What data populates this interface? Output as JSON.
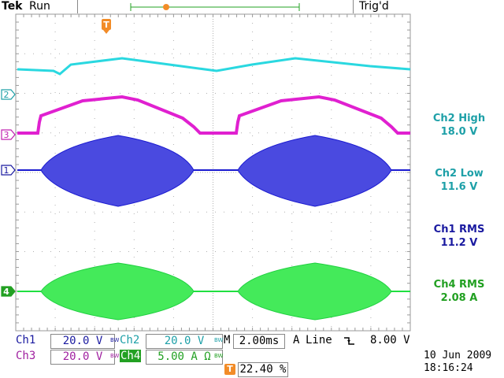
{
  "header": {
    "brand": "Tek",
    "status": "Run",
    "trigger_state": "Trig'd"
  },
  "markers": {
    "trigger_pos": "T",
    "ch2": "2",
    "ch3": "3",
    "ch1": "1",
    "ch4": "4"
  },
  "measurements": [
    {
      "label": "Ch2 High",
      "value": "18.0 V",
      "color": "#1ea0a8"
    },
    {
      "label": "Ch2 Low",
      "value": "11.6 V",
      "color": "#1ea0a8"
    },
    {
      "label": "Ch1 RMS",
      "value": "11.2 V",
      "color": "#1a1aa0"
    },
    {
      "label": "Ch4 RMS",
      "value": "2.08 A",
      "color": "#22a022"
    }
  ],
  "channels": {
    "ch1": {
      "name": "Ch1",
      "scale": "20.0 V",
      "bw": "BW"
    },
    "ch2": {
      "name": "Ch2",
      "scale": "20.0 V",
      "bw": "BW"
    },
    "ch3": {
      "name": "Ch3",
      "scale": "20.0 V",
      "bw": "BW"
    },
    "ch4": {
      "name": "Ch4",
      "scale": "5.00 A",
      "unit_sym": "Ω",
      "bw": "BW"
    }
  },
  "timebase": {
    "label": "M",
    "value": "2.00ms"
  },
  "trigger": {
    "source_ch": "A",
    "source": "Line",
    "slope_icon": "falling-edge",
    "level": "8.00 V"
  },
  "trigger_position": {
    "marker": "T",
    "value": "22.40 %"
  },
  "datetime": {
    "date": "10 Jun  2009",
    "time": "18:16:24"
  },
  "colors": {
    "ch1": "#1a1ad0",
    "ch2": "#2ad8e0",
    "ch3": "#e020d0",
    "ch4": "#20e040",
    "accent": "#f28c28"
  }
}
